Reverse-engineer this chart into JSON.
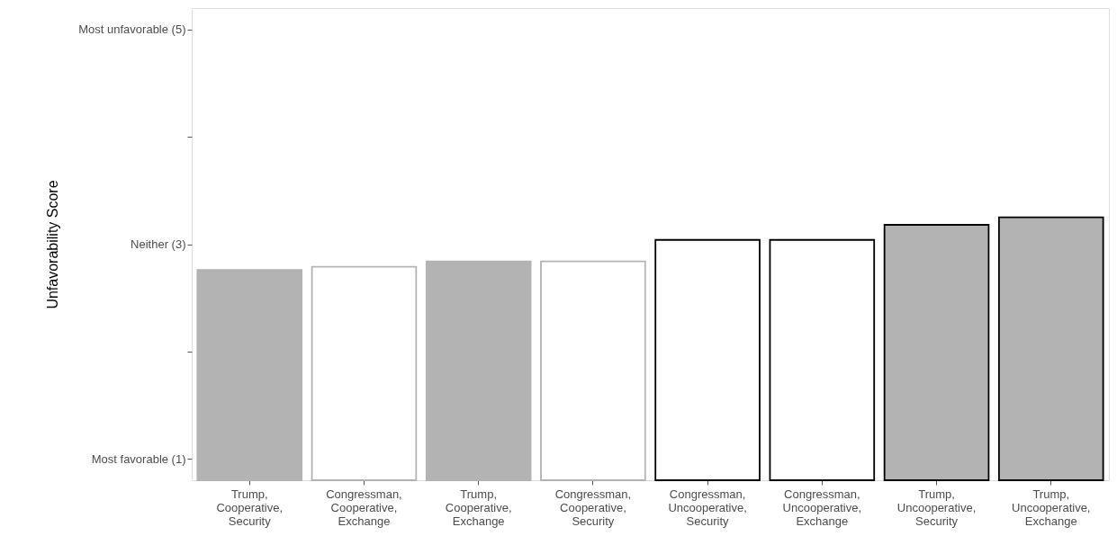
{
  "chart_data": {
    "type": "bar",
    "ylabel": "Unfavorability Score",
    "categories": [
      "Trump, Cooperative, Security",
      "Congressman, Cooperative, Exchange",
      "Trump, Cooperative, Exchange",
      "Congressman, Cooperative, Security",
      "Congressman, Uncooperative, Security",
      "Congressman, Uncooperative, Exchange",
      "Trump, Uncooperative, Security",
      "Trump, Uncooperative, Exchange"
    ],
    "series": [
      {
        "color": "#b3b3b3",
        "colors": [
          "#b3b3b3",
          "#ffffff",
          "#b3b3b3",
          "#ffffff",
          null,
          null,
          null,
          null
        ],
        "values": [
          2.76,
          2.79,
          2.84,
          2.84,
          null,
          null,
          null,
          null
        ]
      },
      {
        "color": "#000000",
        "colors": [
          null,
          null,
          null,
          null,
          "#ffffff",
          "#ffffff",
          "#b3b3b3",
          "#b3b3b3"
        ],
        "values": [
          null,
          null,
          null,
          null,
          3.04,
          3.04,
          3.18,
          3.25
        ]
      }
    ],
    "ylim": [
      0.8,
      5.2
    ],
    "yticks": [
      {
        "value": 1,
        "label": "Most favorable (1)"
      },
      {
        "value": 2,
        "label": null
      },
      {
        "value": 3,
        "label": "Neither (3)"
      },
      {
        "value": 4,
        "label": null
      },
      {
        "value": 5,
        "label": "Most unfavorable (5)"
      }
    ],
    "grid": false
  }
}
